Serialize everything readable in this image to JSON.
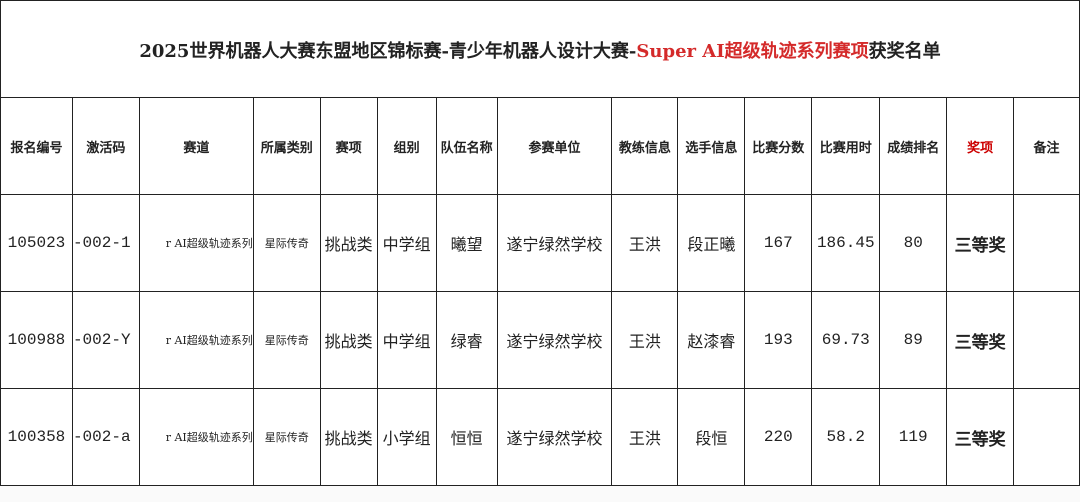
{
  "title": {
    "part1": "2025世界机器人大赛东盟地区锦标赛-青少年机器人设计大赛-",
    "part2": "Super AI超级轨迹系列赛项",
    "part3": "获奖名单"
  },
  "colors": {
    "accent_red": "#d42a2a"
  },
  "headers": [
    "报名编号",
    "激活码",
    "赛道",
    "所属类别",
    "赛项",
    "组别",
    "队伍名称",
    "参赛单位",
    "教练信息",
    "选手信息",
    "比赛分数",
    "比赛用时",
    "成绩排名",
    "奖项",
    "备注"
  ],
  "rows": [
    {
      "id": "105023",
      "code": "-002-1",
      "track": "r AI超级轨迹系列",
      "category": "星际传奇",
      "event": "挑战类",
      "group": "中学组",
      "team": "曦望",
      "unit": "遂宁绿然学校",
      "coach": "王洪",
      "player": "段正曦",
      "score": "167",
      "time": "186.45",
      "rank": "80",
      "award": "三等奖",
      "note": ""
    },
    {
      "id": "100988",
      "code": "-002-Y",
      "track": "r AI超级轨迹系列",
      "category": "星际传奇",
      "event": "挑战类",
      "group": "中学组",
      "team": "绿睿",
      "unit": "遂宁绿然学校",
      "coach": "王洪",
      "player": "赵漆睿",
      "score": "193",
      "time": "69.73",
      "rank": "89",
      "award": "三等奖",
      "note": ""
    },
    {
      "id": "100358",
      "code": "-002-a",
      "track": "r AI超级轨迹系列",
      "category": "星际传奇",
      "event": "挑战类",
      "group": "小学组",
      "team": "恒恒",
      "unit": "遂宁绿然学校",
      "coach": "王洪",
      "player": "段恒",
      "score": "220",
      "time": "58.2",
      "rank": "119",
      "award": "三等奖",
      "note": ""
    }
  ]
}
